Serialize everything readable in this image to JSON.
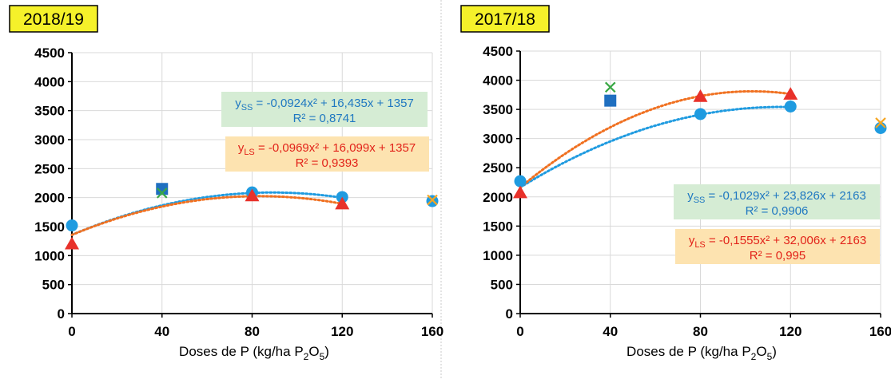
{
  "chart_data": [
    {
      "type": "scatter",
      "title": "2018/19",
      "xlabel_main": "Doses de P (kg/ha P",
      "xlabel_sub": "2",
      "xlabel_mid": "O",
      "xlabel_sub2": "5",
      "xlabel_end": ")",
      "xlim": [
        0,
        160
      ],
      "ylim": [
        0,
        4500
      ],
      "xticks": [
        0,
        40,
        80,
        120,
        160
      ],
      "yticks": [
        0,
        500,
        1000,
        1500,
        2000,
        2500,
        3000,
        3500,
        4000,
        4500
      ],
      "series": [
        {
          "name": "SS",
          "marker": "circle",
          "color": "#1f9be0",
          "x": [
            0,
            80,
            120,
            160
          ],
          "y": [
            1520,
            2090,
            2010,
            1940
          ]
        },
        {
          "name": "LS",
          "marker": "triangle",
          "color": "#e8312a",
          "x": [
            0,
            80,
            120
          ],
          "y": [
            1200,
            2030,
            1890
          ]
        },
        {
          "name": "square",
          "marker": "square",
          "color": "#1f6fc0",
          "x": [
            40
          ],
          "y": [
            2150
          ]
        },
        {
          "name": "cross",
          "marker": "x",
          "color": "#3aa845",
          "x": [
            40
          ],
          "y": [
            2080
          ]
        },
        {
          "name": "cross-orange",
          "marker": "x",
          "color": "#f5a623",
          "x": [
            160
          ],
          "y": [
            1960
          ]
        }
      ],
      "fits": [
        {
          "name": "SS",
          "color": "#1f9be0",
          "a": -0.0924,
          "b": 16.435,
          "c": 1357,
          "xmax": 120
        },
        {
          "name": "LS",
          "color": "#f07020",
          "a": -0.0969,
          "b": 16.099,
          "c": 1357,
          "xmax": 120
        }
      ],
      "equations": [
        {
          "label": "y",
          "sub": "SS",
          "text": " = -0,0924x² + 16,435x + 1357",
          "r2": "R² = 0,8741",
          "color": "blue",
          "box": "#d5ecd4"
        },
        {
          "label": "y",
          "sub": "LS",
          "text": " = -0,0969x² + 16,099x + 1357",
          "r2": "R² = 0,9393",
          "color": "red",
          "box": "#fde3b0"
        }
      ]
    },
    {
      "type": "scatter",
      "title": "2017/18",
      "xlabel_main": "Doses de P (kg/ha P",
      "xlabel_sub": "2",
      "xlabel_mid": "O",
      "xlabel_sub2": "5",
      "xlabel_end": ")",
      "xlim": [
        0,
        160
      ],
      "ylim": [
        0,
        4500
      ],
      "xticks": [
        0,
        40,
        80,
        120,
        160
      ],
      "yticks": [
        0,
        500,
        1000,
        1500,
        2000,
        2500,
        3000,
        3500,
        4000,
        4500
      ],
      "series": [
        {
          "name": "SS",
          "marker": "circle",
          "color": "#1f9be0",
          "x": [
            0,
            80,
            120,
            160
          ],
          "y": [
            2270,
            3420,
            3550,
            3180
          ]
        },
        {
          "name": "LS",
          "marker": "triangle",
          "color": "#e8312a",
          "x": [
            0,
            80,
            120
          ],
          "y": [
            2070,
            3720,
            3760
          ]
        },
        {
          "name": "square",
          "marker": "square",
          "color": "#1f6fc0",
          "x": [
            40
          ],
          "y": [
            3650
          ]
        },
        {
          "name": "cross",
          "marker": "x",
          "color": "#3aa845",
          "x": [
            40
          ],
          "y": [
            3880
          ]
        },
        {
          "name": "cross-orange",
          "marker": "x",
          "color": "#f5a623",
          "x": [
            160
          ],
          "y": [
            3270
          ]
        }
      ],
      "fits": [
        {
          "name": "SS",
          "color": "#1f9be0",
          "a": -0.1029,
          "b": 23.826,
          "c": 2163,
          "xmax": 120
        },
        {
          "name": "LS",
          "color": "#f07020",
          "a": -0.1555,
          "b": 32.006,
          "c": 2163,
          "xmax": 120
        }
      ],
      "equations": [
        {
          "label": "y",
          "sub": "SS",
          "text": " = -0,1029x² + 23,826x + 2163",
          "r2": "R² = 0,9906",
          "color": "blue",
          "box": "#d5ecd4"
        },
        {
          "label": "y",
          "sub": "LS",
          "text": " = -0,1555x² + 32,006x + 2163",
          "r2": "R² = 0,995",
          "color": "red",
          "box": "#fde3b0"
        }
      ]
    }
  ]
}
